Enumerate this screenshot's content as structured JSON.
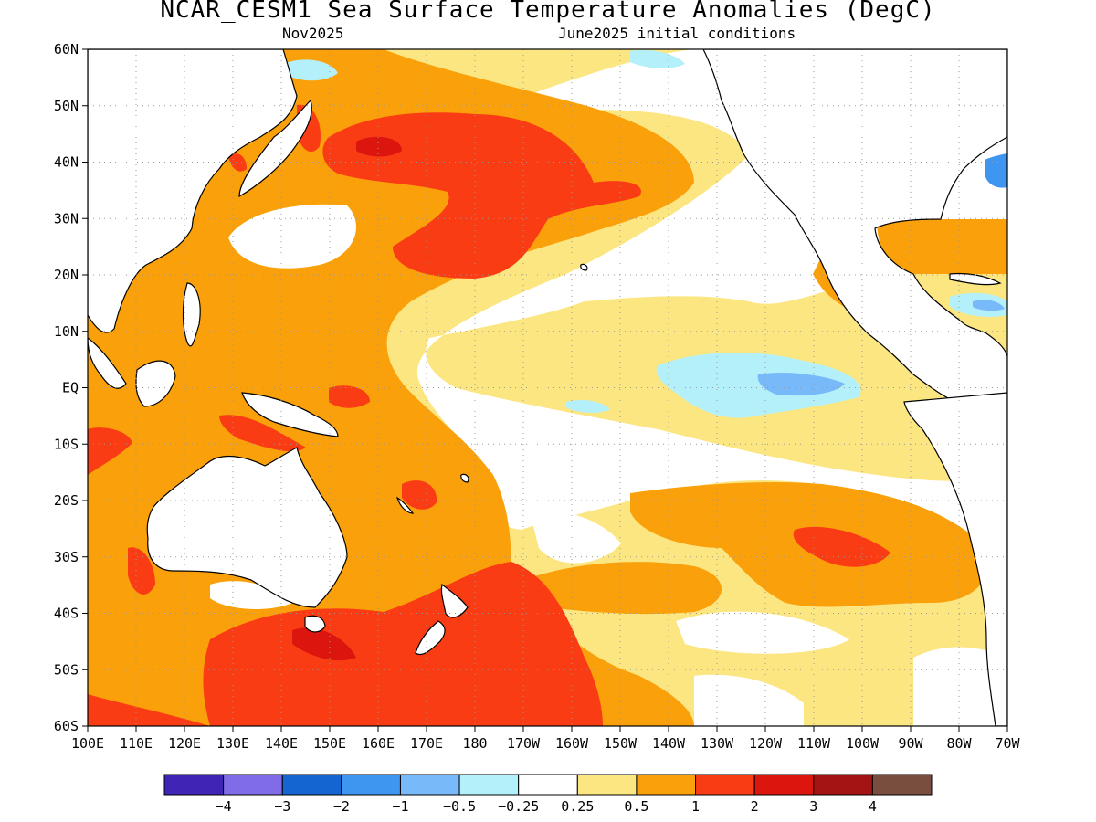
{
  "title": "NCAR_CESM1 Sea Surface Temperature Anomalies (DegC)",
  "subtitle_left": "Nov2025",
  "subtitle_right": "June2025 initial conditions",
  "lat_labels": [
    "60N",
    "50N",
    "40N",
    "30N",
    "20N",
    "10N",
    "EQ",
    "10S",
    "20S",
    "30S",
    "40S",
    "50S",
    "60S"
  ],
  "lon_labels": [
    "100E",
    "110E",
    "120E",
    "130E",
    "140E",
    "150E",
    "160E",
    "170E",
    "180",
    "170W",
    "160W",
    "150W",
    "140W",
    "130W",
    "120W",
    "110W",
    "100W",
    "90W",
    "80W",
    "70W"
  ],
  "colorbar": {
    "colors": [
      "#3f24b5",
      "#7f6ce6",
      "#1464d2",
      "#3e96f0",
      "#78b9fa",
      "#b4f0fa",
      "#ffffff",
      "#fce682",
      "#faa00a",
      "#fa3c14",
      "#dc160e",
      "#a51414",
      "#7a4e3e"
    ],
    "labels": [
      "-4",
      "-3",
      "-2",
      "-1",
      "-0.5",
      "-0.25",
      "0.25",
      "0.5",
      "1",
      "2",
      "3",
      "4"
    ]
  },
  "colors": {
    "land": "#ffffff",
    "coast": "#000000",
    "grid": "#999999"
  }
}
